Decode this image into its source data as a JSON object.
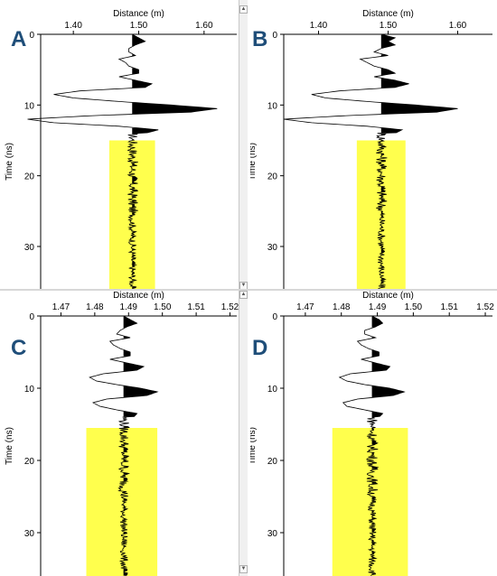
{
  "chart_data": [
    {
      "type": "line",
      "panel": "A",
      "xlabel": "Distance (m)",
      "ylabel": "Time (ns)",
      "x_ticks": [
        1.4,
        1.5,
        1.6
      ],
      "x_tick_labels": [
        "1.40",
        "1.50",
        "1.60"
      ],
      "xlim": [
        1.35,
        1.65
      ],
      "y_ticks": [
        0,
        10,
        20,
        30
      ],
      "ylim": [
        0,
        36
      ],
      "y_inverted": true,
      "trace_x": 1.49,
      "highlight": {
        "time_range": [
          15,
          36
        ],
        "distance_range": [
          1.455,
          1.525
        ],
        "color": "#ffff4d"
      },
      "series": [
        {
          "wiggle_trace": {
            "t": [
              0,
              0.5,
              1,
              1.5,
              2,
              2.5,
              3,
              3.5,
              4,
              4.5,
              5,
              5.5,
              6,
              6.5,
              7,
              7.5,
              8,
              8.5,
              9,
              9.5,
              10,
              10.5,
              11,
              11.5,
              12,
              12.5,
              13,
              13.5,
              14
            ],
            "a": [
              0,
              0.01,
              0.02,
              0.005,
              -0.005,
              -0.005,
              0.005,
              -0.02,
              -0.01,
              -0.005,
              0.01,
              0.01,
              -0.02,
              0.005,
              0.03,
              0.02,
              -0.08,
              -0.12,
              -0.09,
              -0.02,
              0.06,
              0.13,
              0.09,
              -0.06,
              -0.16,
              -0.12,
              -0.02,
              0.04,
              0.02
            ]
          }
        }
      ]
    },
    {
      "type": "line",
      "panel": "B",
      "xlabel": "Distance (m)",
      "ylabel": "Time (ns)",
      "x_ticks": [
        1.4,
        1.5,
        1.6
      ],
      "x_tick_labels": [
        "1.40",
        "1.50",
        "1.60"
      ],
      "xlim": [
        1.35,
        1.65
      ],
      "y_ticks": [
        0,
        10,
        20,
        30
      ],
      "ylim": [
        0,
        36
      ],
      "y_inverted": true,
      "trace_x": 1.49,
      "highlight": {
        "time_range": [
          15,
          36
        ],
        "distance_range": [
          1.455,
          1.525
        ],
        "color": "#ffff4d"
      },
      "series": [
        {
          "wiggle_trace": {
            "t": [
              0,
              0.5,
              1,
              1.5,
              2,
              2.5,
              3,
              3.5,
              4,
              4.5,
              5,
              5.5,
              6,
              6.5,
              7,
              7.5,
              8,
              8.5,
              9,
              9.5,
              10,
              10.5,
              11,
              11.5,
              12,
              12.5,
              13,
              13.5,
              14
            ],
            "a": [
              0,
              0.02,
              0.01,
              0.02,
              0.0,
              -0.01,
              0.01,
              -0.03,
              -0.02,
              -0.01,
              0.01,
              0.02,
              -0.01,
              0.02,
              0.04,
              0.02,
              -0.06,
              -0.1,
              -0.08,
              -0.02,
              0.05,
              0.11,
              0.08,
              -0.05,
              -0.14,
              -0.1,
              -0.02,
              0.03,
              0.02
            ]
          }
        }
      ]
    },
    {
      "type": "line",
      "panel": "C",
      "xlabel": "Distance (m)",
      "ylabel": "Time (ns)",
      "x_ticks": [
        1.47,
        1.48,
        1.49,
        1.5,
        1.51,
        1.52
      ],
      "x_tick_labels": [
        "1.47",
        "1.48",
        "1.49",
        "1.50",
        "1.51",
        "1.52"
      ],
      "xlim": [
        1.464,
        1.522
      ],
      "y_ticks": [
        0,
        10,
        20,
        30
      ],
      "ylim": [
        0,
        36
      ],
      "y_inverted": true,
      "trace_x": 1.4885,
      "highlight": {
        "time_range": [
          15.5,
          36
        ],
        "distance_range": [
          1.4775,
          1.4985
        ],
        "color": "#ffff4d"
      },
      "series": [
        {
          "wiggle_trace": {
            "t": [
              0,
              0.5,
              1,
              1.5,
              2,
              2.5,
              3,
              3.5,
              4,
              4.5,
              5,
              5.5,
              6,
              6.5,
              7,
              7.5,
              8,
              8.5,
              9,
              9.5,
              10,
              10.5,
              11,
              11.5,
              12,
              12.5,
              13,
              13.5,
              14
            ],
            "a": [
              0,
              0.002,
              0.004,
              0.001,
              -0.001,
              -0.002,
              0.002,
              -0.004,
              -0.003,
              -0.001,
              0.002,
              0.002,
              -0.004,
              0.001,
              0.006,
              0.004,
              -0.006,
              -0.01,
              -0.008,
              -0.002,
              0.005,
              0.01,
              0.007,
              -0.005,
              -0.009,
              -0.007,
              -0.002,
              0.004,
              0.003
            ]
          }
        }
      ]
    },
    {
      "type": "line",
      "panel": "D",
      "xlabel": "Distance (m)",
      "ylabel": "Time (ns)",
      "x_ticks": [
        1.47,
        1.48,
        1.49,
        1.5,
        1.51,
        1.52
      ],
      "x_tick_labels": [
        "1.47",
        "1.48",
        "1.49",
        "1.50",
        "1.51",
        "1.52"
      ],
      "xlim": [
        1.464,
        1.522
      ],
      "y_ticks": [
        0,
        10,
        20,
        30
      ],
      "ylim": [
        0,
        36
      ],
      "y_inverted": true,
      "trace_x": 1.4885,
      "highlight": {
        "time_range": [
          15.5,
          36
        ],
        "distance_range": [
          1.4775,
          1.4985
        ],
        "color": "#ffff4d"
      },
      "series": [
        {
          "wiggle_trace": {
            "t": [
              0,
              0.5,
              1,
              1.5,
              2,
              2.5,
              3,
              3.5,
              4,
              4.5,
              5,
              5.5,
              6,
              6.5,
              7,
              7.5,
              8,
              8.5,
              9,
              9.5,
              10,
              10.5,
              11,
              11.5,
              12,
              12.5,
              13,
              13.5,
              14
            ],
            "a": [
              0,
              0.002,
              0.003,
              0.001,
              -0.002,
              -0.002,
              0.001,
              -0.004,
              -0.003,
              -0.001,
              0.002,
              0.002,
              -0.003,
              0.001,
              0.005,
              0.004,
              -0.006,
              -0.009,
              -0.007,
              -0.002,
              0.005,
              0.009,
              0.006,
              -0.004,
              -0.008,
              -0.007,
              -0.002,
              0.003,
              0.002
            ]
          }
        }
      ]
    }
  ],
  "panels": [
    {
      "letter": "A"
    },
    {
      "letter": "B"
    },
    {
      "letter": "C"
    },
    {
      "letter": "D"
    }
  ],
  "colors": {
    "highlight": "#ffff4d",
    "trace": "#000000",
    "fill_positive": "#000000",
    "fill_highlighted": "#6b6b00",
    "panel_letter": "#1f4e79",
    "divider": "#d7d7d7"
  }
}
